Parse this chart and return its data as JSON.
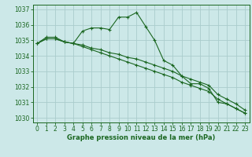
{
  "title": "Graphe pression niveau de la mer (hPa)",
  "bg_color": "#cce8e8",
  "grid_color": "#aacccc",
  "line_color": "#1a6620",
  "x_values": [
    0,
    1,
    2,
    3,
    4,
    5,
    6,
    7,
    8,
    9,
    10,
    11,
    12,
    13,
    14,
    15,
    16,
    17,
    18,
    19,
    20,
    21,
    22,
    23
  ],
  "series1": [
    1034.8,
    1035.2,
    1035.2,
    1034.9,
    1034.8,
    1035.6,
    1035.8,
    1035.8,
    1035.7,
    1036.5,
    1036.5,
    1036.8,
    1035.9,
    1035.0,
    1033.7,
    1033.4,
    1032.7,
    1032.2,
    1032.2,
    1031.9,
    1031.0,
    1030.9,
    1030.6,
    1030.3
  ],
  "series2": [
    1034.8,
    1035.1,
    1035.1,
    1034.9,
    1034.8,
    1034.6,
    1034.4,
    1034.2,
    1034.0,
    1033.8,
    1033.6,
    1033.4,
    1033.2,
    1033.0,
    1032.8,
    1032.6,
    1032.3,
    1032.1,
    1031.9,
    1031.7,
    1031.2,
    1030.9,
    1030.6,
    1030.3
  ],
  "series3": [
    1034.8,
    1035.1,
    1035.1,
    1034.9,
    1034.8,
    1034.7,
    1034.5,
    1034.4,
    1034.2,
    1034.1,
    1033.9,
    1033.8,
    1033.6,
    1033.4,
    1033.2,
    1033.0,
    1032.7,
    1032.5,
    1032.3,
    1032.1,
    1031.5,
    1031.2,
    1030.9,
    1030.5
  ],
  "ylim": [
    1029.7,
    1037.3
  ],
  "yticks": [
    1030,
    1031,
    1032,
    1033,
    1034,
    1035,
    1036,
    1037
  ],
  "marker": "+",
  "markersize": 3,
  "linewidth": 0.8,
  "title_fontsize": 6.0,
  "tick_fontsize": 5.5
}
